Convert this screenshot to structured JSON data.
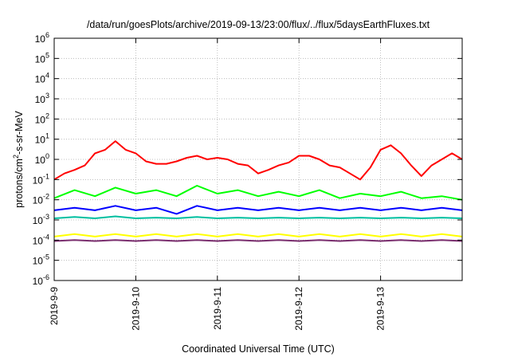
{
  "chart_data": {
    "type": "line",
    "title": "/data/run/goesPlots/archive/2019-09-13/23:00/flux/../flux/5daysEarthFluxes.txt",
    "xlabel": "Coordinated Universal Time (UTC)",
    "ylabel": {
      "base": "protons/cm",
      "sup": "2",
      "rest": "-s-sr-MeV"
    },
    "y_scale": "log",
    "ylim": [
      1e-06,
      1000000.0
    ],
    "xlim": [
      "2019-09-09",
      "2019-09-14"
    ],
    "x_ticks": [
      "2019-9-9",
      "2019-9-10",
      "2019-9-11",
      "2019-9-12",
      "2019-9-13"
    ],
    "y_ticks": [
      {
        "value": 1e-06,
        "base": "10",
        "exp": "-6"
      },
      {
        "value": 1e-05,
        "base": "10",
        "exp": "-5"
      },
      {
        "value": 0.0001,
        "base": "10",
        "exp": "-4"
      },
      {
        "value": 0.001,
        "base": "10",
        "exp": "-3"
      },
      {
        "value": 0.01,
        "base": "10",
        "exp": "-2"
      },
      {
        "value": 0.1,
        "base": "10",
        "exp": "-1"
      },
      {
        "value": 1.0,
        "base": "10",
        "exp": "0"
      },
      {
        "value": 10.0,
        "base": "10",
        "exp": "1"
      },
      {
        "value": 100.0,
        "base": "10",
        "exp": "2"
      },
      {
        "value": 1000.0,
        "base": "10",
        "exp": "3"
      },
      {
        "value": 10000.0,
        "base": "10",
        "exp": "4"
      },
      {
        "value": 100000.0,
        "base": "10",
        "exp": "5"
      },
      {
        "value": 1000000.0,
        "base": "10",
        "exp": "6"
      }
    ],
    "grid": true,
    "series": [
      {
        "color": "#ff0000",
        "x": [
          "2019-09-09 00:00",
          "2019-09-09 03:00",
          "2019-09-09 06:00",
          "2019-09-09 09:00",
          "2019-09-09 12:00",
          "2019-09-09 15:00",
          "2019-09-09 18:00",
          "2019-09-09 21:00",
          "2019-09-10 00:00",
          "2019-09-10 03:00",
          "2019-09-10 06:00",
          "2019-09-10 09:00",
          "2019-09-10 12:00",
          "2019-09-10 15:00",
          "2019-09-10 18:00",
          "2019-09-10 21:00",
          "2019-09-11 00:00",
          "2019-09-11 03:00",
          "2019-09-11 06:00",
          "2019-09-11 09:00",
          "2019-09-11 12:00",
          "2019-09-11 15:00",
          "2019-09-11 18:00",
          "2019-09-11 21:00",
          "2019-09-12 00:00",
          "2019-09-12 03:00",
          "2019-09-12 06:00",
          "2019-09-12 09:00",
          "2019-09-12 12:00",
          "2019-09-12 15:00",
          "2019-09-12 18:00",
          "2019-09-12 21:00",
          "2019-09-13 00:00",
          "2019-09-13 03:00",
          "2019-09-13 06:00",
          "2019-09-13 09:00",
          "2019-09-13 12:00",
          "2019-09-13 15:00",
          "2019-09-13 18:00",
          "2019-09-13 21:00",
          "2019-09-14 00:00"
        ],
        "y": [
          0.1,
          0.2,
          0.3,
          0.5,
          2.0,
          3.0,
          8.0,
          3.0,
          2.0,
          0.8,
          0.6,
          0.6,
          0.8,
          1.2,
          1.5,
          1.0,
          1.2,
          1.0,
          0.6,
          0.5,
          0.2,
          0.3,
          0.5,
          0.7,
          1.5,
          1.5,
          1.0,
          0.5,
          0.4,
          0.2,
          0.1,
          0.4,
          3.0,
          5.0,
          2.0,
          0.5,
          0.15,
          0.5,
          1.0,
          2.0,
          1.0
        ]
      },
      {
        "color": "#00ff00",
        "x": [
          "2019-09-09 00:00",
          "2019-09-09 06:00",
          "2019-09-09 12:00",
          "2019-09-09 18:00",
          "2019-09-10 00:00",
          "2019-09-10 06:00",
          "2019-09-10 12:00",
          "2019-09-10 18:00",
          "2019-09-11 00:00",
          "2019-09-11 06:00",
          "2019-09-11 12:00",
          "2019-09-11 18:00",
          "2019-09-12 00:00",
          "2019-09-12 06:00",
          "2019-09-12 12:00",
          "2019-09-12 18:00",
          "2019-09-13 00:00",
          "2019-09-13 06:00",
          "2019-09-13 12:00",
          "2019-09-13 18:00",
          "2019-09-14 00:00"
        ],
        "y": [
          0.012,
          0.03,
          0.015,
          0.04,
          0.02,
          0.03,
          0.015,
          0.05,
          0.02,
          0.03,
          0.015,
          0.025,
          0.015,
          0.03,
          0.012,
          0.02,
          0.015,
          0.025,
          0.012,
          0.015,
          0.01
        ]
      },
      {
        "color": "#0000ff",
        "x": [
          "2019-09-09 00:00",
          "2019-09-09 06:00",
          "2019-09-09 12:00",
          "2019-09-09 18:00",
          "2019-09-10 00:00",
          "2019-09-10 06:00",
          "2019-09-10 12:00",
          "2019-09-10 18:00",
          "2019-09-11 00:00",
          "2019-09-11 06:00",
          "2019-09-11 12:00",
          "2019-09-11 18:00",
          "2019-09-12 00:00",
          "2019-09-12 06:00",
          "2019-09-12 12:00",
          "2019-09-12 18:00",
          "2019-09-13 00:00",
          "2019-09-13 06:00",
          "2019-09-13 12:00",
          "2019-09-13 18:00",
          "2019-09-14 00:00"
        ],
        "y": [
          0.003,
          0.004,
          0.003,
          0.005,
          0.003,
          0.004,
          0.002,
          0.005,
          0.003,
          0.004,
          0.003,
          0.004,
          0.003,
          0.004,
          0.003,
          0.004,
          0.003,
          0.004,
          0.003,
          0.004,
          0.003
        ]
      },
      {
        "color": "#00bfa0",
        "x": [
          "2019-09-09 00:00",
          "2019-09-09 06:00",
          "2019-09-09 12:00",
          "2019-09-09 18:00",
          "2019-09-10 00:00",
          "2019-09-10 06:00",
          "2019-09-10 12:00",
          "2019-09-10 18:00",
          "2019-09-11 00:00",
          "2019-09-11 06:00",
          "2019-09-11 12:00",
          "2019-09-11 18:00",
          "2019-09-12 00:00",
          "2019-09-12 06:00",
          "2019-09-12 12:00",
          "2019-09-12 18:00",
          "2019-09-13 00:00",
          "2019-09-13 06:00",
          "2019-09-13 12:00",
          "2019-09-13 18:00",
          "2019-09-14 00:00"
        ],
        "y": [
          0.0012,
          0.0014,
          0.0012,
          0.0015,
          0.0012,
          0.0013,
          0.0012,
          0.0014,
          0.0012,
          0.0013,
          0.0012,
          0.0013,
          0.0012,
          0.0013,
          0.0012,
          0.0013,
          0.0012,
          0.0013,
          0.0012,
          0.0013,
          0.0012
        ]
      },
      {
        "color": "#ffff00",
        "x": [
          "2019-09-09 00:00",
          "2019-09-09 06:00",
          "2019-09-09 12:00",
          "2019-09-09 18:00",
          "2019-09-10 00:00",
          "2019-09-10 06:00",
          "2019-09-10 12:00",
          "2019-09-10 18:00",
          "2019-09-11 00:00",
          "2019-09-11 06:00",
          "2019-09-11 12:00",
          "2019-09-11 18:00",
          "2019-09-12 00:00",
          "2019-09-12 06:00",
          "2019-09-12 12:00",
          "2019-09-12 18:00",
          "2019-09-13 00:00",
          "2019-09-13 06:00",
          "2019-09-13 12:00",
          "2019-09-13 18:00",
          "2019-09-14 00:00"
        ],
        "y": [
          0.00015,
          0.0002,
          0.00015,
          0.0002,
          0.00015,
          0.0002,
          0.00015,
          0.0002,
          0.00015,
          0.0002,
          0.00015,
          0.0002,
          0.00015,
          0.0002,
          0.00015,
          0.0002,
          0.00015,
          0.0002,
          0.00015,
          0.0002,
          0.00015
        ]
      },
      {
        "color": "#7a2e6e",
        "x": [
          "2019-09-09 00:00",
          "2019-09-09 06:00",
          "2019-09-09 12:00",
          "2019-09-09 18:00",
          "2019-09-10 00:00",
          "2019-09-10 06:00",
          "2019-09-10 12:00",
          "2019-09-10 18:00",
          "2019-09-11 00:00",
          "2019-09-11 06:00",
          "2019-09-11 12:00",
          "2019-09-11 18:00",
          "2019-09-12 00:00",
          "2019-09-12 06:00",
          "2019-09-12 12:00",
          "2019-09-12 18:00",
          "2019-09-13 00:00",
          "2019-09-13 06:00",
          "2019-09-13 12:00",
          "2019-09-13 18:00",
          "2019-09-14 00:00"
        ],
        "y": [
          9e-05,
          0.0001,
          9e-05,
          0.0001,
          9e-05,
          0.0001,
          9e-05,
          0.0001,
          9e-05,
          0.0001,
          9e-05,
          0.0001,
          9e-05,
          0.0001,
          9e-05,
          0.0001,
          9e-05,
          0.0001,
          9e-05,
          0.0001,
          9e-05
        ]
      }
    ]
  }
}
